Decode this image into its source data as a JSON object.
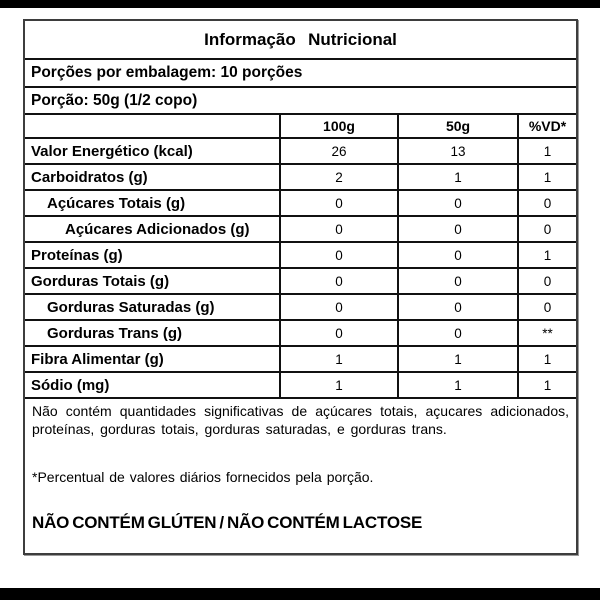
{
  "label": {
    "title": "Informação Nutricional",
    "servings_line": "Porções por embalagem: 10 porções",
    "portion_line": "Porção: 50g (1/2 copo)",
    "columns": [
      "100g",
      "50g",
      "%VD*"
    ],
    "rows": [
      {
        "label": "Valor Energético (kcal)",
        "v100g": "26",
        "v50g": "13",
        "vd": "1"
      },
      {
        "label": "Carboidratos (g)",
        "v100g": "2",
        "v50g": "1",
        "vd": "1"
      },
      {
        "label": "Açúcares Totais (g)",
        "v100g": "0",
        "v50g": "0",
        "vd": "0"
      },
      {
        "label": "Açúcares Adicionados (g)",
        "v100g": "0",
        "v50g": "0",
        "vd": "0"
      },
      {
        "label": "Proteínas (g)",
        "v100g": "0",
        "v50g": "0",
        "vd": "1"
      },
      {
        "label": "Gorduras Totais (g)",
        "v100g": "0",
        "v50g": "0",
        "vd": "0"
      },
      {
        "label": "Gorduras Saturadas (g)",
        "v100g": "0",
        "v50g": "0",
        "vd": "0"
      },
      {
        "label": "Gorduras Trans (g)",
        "v100g": "0",
        "v50g": "0",
        "vd": "**"
      },
      {
        "label": "Fibra Alimentar (g)",
        "v100g": "1",
        "v50g": "1",
        "vd": "1"
      },
      {
        "label": "Sódio (mg)",
        "v100g": "1",
        "v50g": "1",
        "vd": "1"
      }
    ],
    "note_insignificant": "Não contém quantidades significativas de açúcares totais, açucares adicionados, proteínas, gorduras totais, gorduras saturadas, e gorduras trans.",
    "note_daily_values": "*Percentual de valores diários fornecidos pela porção.",
    "claim_line": "NÃO CONTÉM GLÚTEN / NÃO CONTÉM LACTOSE"
  },
  "colors": {
    "background": "#ffffff",
    "text": "#000000",
    "inner_lines": "#111111",
    "outer_border": "#3d3d3d",
    "scan_bars": "#000000"
  }
}
